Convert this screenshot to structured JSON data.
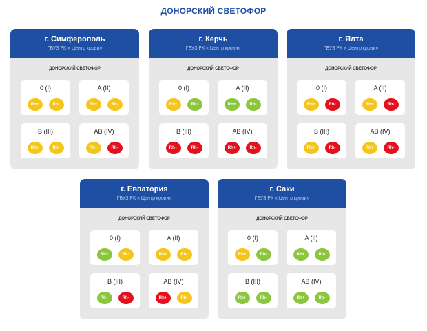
{
  "page": {
    "title": "ДОНОРСКИЙ СВЕТОФОР"
  },
  "colors": {
    "yellow": "#f4c51f",
    "green": "#8cc63e",
    "red": "#e3101e",
    "header": "#1f4fa3"
  },
  "cards": [
    {
      "city": "г. Симферополь",
      "subtitle": "ГБУЗ РК « Центр крови»",
      "label": "ДОНОРСКИЙ СВЕТОФОР",
      "groups": [
        {
          "name": "0 (I)",
          "dots": [
            {
              "label": "Rh+",
              "color": "yellow"
            },
            {
              "label": "Rh-",
              "color": "yellow"
            }
          ]
        },
        {
          "name": "A (II)",
          "dots": [
            {
              "label": "Rh+",
              "color": "yellow"
            },
            {
              "label": "Rh-",
              "color": "yellow"
            }
          ]
        },
        {
          "name": "B (III)",
          "dots": [
            {
              "label": "Rh+",
              "color": "yellow"
            },
            {
              "label": "Rh-",
              "color": "yellow"
            }
          ]
        },
        {
          "name": "AB (IV)",
          "dots": [
            {
              "label": "Rh+",
              "color": "yellow"
            },
            {
              "label": "Rh-",
              "color": "red"
            }
          ]
        }
      ]
    },
    {
      "city": "г. Керчь",
      "subtitle": "ГБУЗ РК « Центр крови»",
      "label": "ДОНОРСКИЙ СВЕТОФОР",
      "groups": [
        {
          "name": "0 (I)",
          "dots": [
            {
              "label": "Rh+",
              "color": "yellow"
            },
            {
              "label": "Rh-",
              "color": "green"
            }
          ]
        },
        {
          "name": "A (II)",
          "dots": [
            {
              "label": "Rh+",
              "color": "green"
            },
            {
              "label": "Rh-",
              "color": "green"
            }
          ]
        },
        {
          "name": "B (III)",
          "dots": [
            {
              "label": "Rh+",
              "color": "red"
            },
            {
              "label": "Rh-",
              "color": "red"
            }
          ]
        },
        {
          "name": "AB (IV)",
          "dots": [
            {
              "label": "Rh+",
              "color": "red"
            },
            {
              "label": "Rh-",
              "color": "red"
            }
          ]
        }
      ]
    },
    {
      "city": "г. Ялта",
      "subtitle": "ГБУЗ РК « Центр крови»",
      "label": "ДОНОРСКИЙ СВЕТОФОР",
      "groups": [
        {
          "name": "0 (I)",
          "dots": [
            {
              "label": "Rh+",
              "color": "yellow"
            },
            {
              "label": "Rh-",
              "color": "red"
            }
          ]
        },
        {
          "name": "A (II)",
          "dots": [
            {
              "label": "Rh+",
              "color": "yellow"
            },
            {
              "label": "Rh-",
              "color": "red"
            }
          ]
        },
        {
          "name": "B (III)",
          "dots": [
            {
              "label": "Rh+",
              "color": "yellow"
            },
            {
              "label": "Rh-",
              "color": "red"
            }
          ]
        },
        {
          "name": "AB (IV)",
          "dots": [
            {
              "label": "Rh+",
              "color": "yellow"
            },
            {
              "label": "Rh-",
              "color": "red"
            }
          ]
        }
      ]
    },
    {
      "city": "г. Евпатория",
      "subtitle": "ГБУЗ РК « Центр крови»",
      "label": "ДОНОРСКИЙ СВЕТОФОР",
      "groups": [
        {
          "name": "0 (I)",
          "dots": [
            {
              "label": "Rh+",
              "color": "green"
            },
            {
              "label": "Rh-",
              "color": "yellow"
            }
          ]
        },
        {
          "name": "A (II)",
          "dots": [
            {
              "label": "Rh+",
              "color": "yellow"
            },
            {
              "label": "Rh-",
              "color": "yellow"
            }
          ]
        },
        {
          "name": "B (III)",
          "dots": [
            {
              "label": "Rh+",
              "color": "green"
            },
            {
              "label": "Rh-",
              "color": "red"
            }
          ]
        },
        {
          "name": "AB (IV)",
          "dots": [
            {
              "label": "Rh+",
              "color": "red"
            },
            {
              "label": "Rh-",
              "color": "yellow"
            }
          ]
        }
      ]
    },
    {
      "city": "г. Саки",
      "subtitle": "ГБУЗ РК « Центр крови»",
      "label": "ДОНОРСКИЙ СВЕТОФОР",
      "groups": [
        {
          "name": "0 (I)",
          "dots": [
            {
              "label": "Rh+",
              "color": "yellow"
            },
            {
              "label": "Rh-",
              "color": "green"
            }
          ]
        },
        {
          "name": "A (II)",
          "dots": [
            {
              "label": "Rh+",
              "color": "green"
            },
            {
              "label": "Rh-",
              "color": "green"
            }
          ]
        },
        {
          "name": "B (III)",
          "dots": [
            {
              "label": "Rh+",
              "color": "green"
            },
            {
              "label": "Rh-",
              "color": "green"
            }
          ]
        },
        {
          "name": "AB (IV)",
          "dots": [
            {
              "label": "Rh+",
              "color": "green"
            },
            {
              "label": "Rh-",
              "color": "green"
            }
          ]
        }
      ]
    }
  ]
}
